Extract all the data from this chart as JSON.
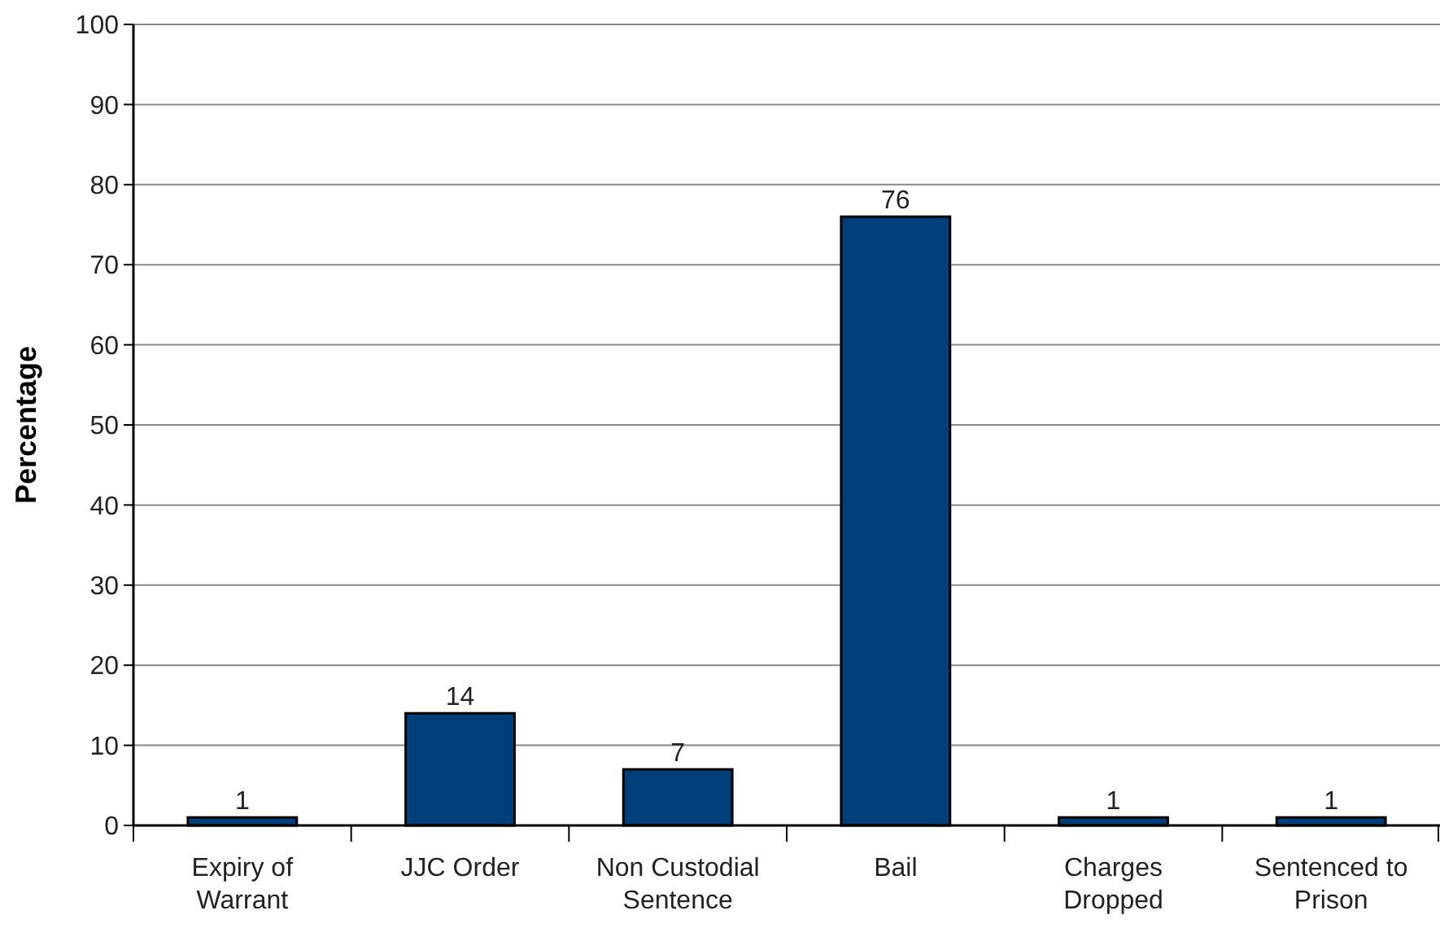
{
  "chart_data": {
    "type": "bar",
    "ylabel": "Percentage",
    "categories": [
      "Expiry of Warrant",
      "JJC Order",
      "Non Custodial Sentence",
      "Bail",
      "Charges Dropped",
      "Sentenced to Prison"
    ],
    "values": [
      1,
      14,
      7,
      76,
      1,
      1
    ],
    "color": "#003f7a",
    "ylim": [
      0,
      100
    ],
    "yticks": [
      0,
      10,
      20,
      30,
      40,
      50,
      60,
      70,
      80,
      90,
      100
    ],
    "grid": "y",
    "data_labels": true
  }
}
